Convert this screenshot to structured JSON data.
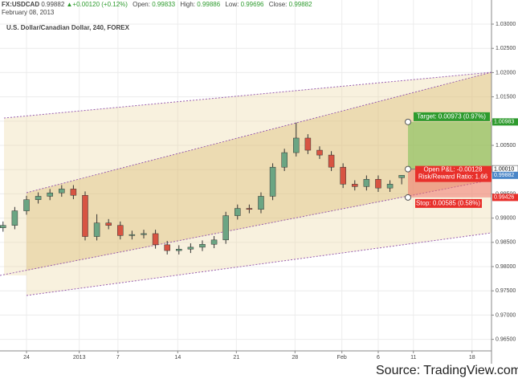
{
  "header": {
    "symbol": "FX:USDCAD",
    "last": "0.99882",
    "change": "+0.00120 (+0.12%)",
    "open_label": "Open:",
    "open": "0.99833",
    "high_label": "High:",
    "high": "0.99886",
    "low_label": "Low:",
    "low": "0.99696",
    "close_label": "Close:",
    "close": "0.99882",
    "date": "February 08, 2013"
  },
  "chart_data": {
    "type": "candlestick",
    "title": "U.S. Dollar/Canadian Dollar, 240, FOREX",
    "x": [
      -2,
      -1,
      0,
      1,
      2,
      3,
      4,
      5,
      6,
      7,
      8,
      9,
      10,
      11,
      12,
      13,
      14,
      15,
      16,
      17,
      18,
      19,
      20,
      21,
      22,
      23,
      24,
      25,
      26,
      27,
      28,
      29,
      30,
      31,
      32
    ],
    "open": [
      0.988,
      0.9885,
      0.9915,
      0.9938,
      0.9945,
      0.9952,
      0.996,
      0.9947,
      0.9862,
      0.989,
      0.9885,
      0.9864,
      0.9866,
      0.9868,
      0.9845,
      0.9833,
      0.9836,
      0.984,
      0.9846,
      0.9855,
      0.9905,
      0.992,
      0.9918,
      0.9945,
      1.0005,
      1.0035,
      1.0065,
      1.004,
      1.003,
      1.0005,
      0.997,
      0.9965,
      0.998,
      0.9962,
      0.99833
    ],
    "high": [
      0.9893,
      0.9923,
      0.9946,
      0.9953,
      0.996,
      0.9968,
      0.9968,
      0.9955,
      0.9908,
      0.9898,
      0.9893,
      0.9874,
      0.9876,
      0.9876,
      0.9853,
      0.9844,
      0.9848,
      0.9854,
      0.9863,
      0.9913,
      0.9928,
      0.9928,
      0.9953,
      1.0013,
      1.0043,
      1.0097,
      1.0073,
      1.0048,
      1.0038,
      1.0013,
      0.9978,
      0.9988,
      0.9988,
      0.9978,
      0.99886
    ],
    "low": [
      0.9872,
      0.9877,
      0.9907,
      0.993,
      0.9937,
      0.9944,
      0.9939,
      0.9854,
      0.9854,
      0.9877,
      0.9856,
      0.9856,
      0.9858,
      0.9837,
      0.9825,
      0.9825,
      0.9828,
      0.9832,
      0.9838,
      0.9847,
      0.9897,
      0.991,
      0.991,
      0.9937,
      0.9997,
      1.0027,
      1.0032,
      1.0022,
      0.9997,
      0.9962,
      0.9957,
      0.9957,
      0.9954,
      0.9954,
      0.99696
    ],
    "close": [
      0.9885,
      0.9915,
      0.9938,
      0.9945,
      0.9952,
      0.996,
      0.9947,
      0.9862,
      0.989,
      0.9885,
      0.9864,
      0.9866,
      0.9868,
      0.9845,
      0.9833,
      0.9836,
      0.984,
      0.9846,
      0.9855,
      0.9905,
      0.992,
      0.9918,
      0.9945,
      1.0005,
      1.0035,
      1.0065,
      1.004,
      1.003,
      1.0005,
      0.997,
      0.9965,
      0.998,
      0.9962,
      0.997,
      0.99882
    ],
    "up_color": "#6ba583",
    "down_color": "#d75442",
    "xlim": [
      -2.26,
      39.66
    ],
    "xticks": [
      {
        "value": 0,
        "label": "24"
      },
      {
        "value": 4.5,
        "label": "2013"
      },
      {
        "value": 7.8,
        "label": "7"
      },
      {
        "value": 12.9,
        "label": "14"
      },
      {
        "value": 17.9,
        "label": "21"
      },
      {
        "value": 22.9,
        "label": "28"
      },
      {
        "value": 26.9,
        "label": "Feb"
      },
      {
        "value": 30,
        "label": "6"
      },
      {
        "value": 33,
        "label": "11"
      },
      {
        "value": 38,
        "label": "18"
      }
    ],
    "ylim": [
      0.96262,
      1.03166
    ],
    "yticks": [
      {
        "value": 1.03,
        "label": "1.03000"
      },
      {
        "value": 1.025,
        "label": "1.02500"
      },
      {
        "value": 1.02,
        "label": "1.02000"
      },
      {
        "value": 1.015,
        "label": "1.01500"
      },
      {
        "value": 1.01,
        "label": "1.01000"
      },
      {
        "value": 1.005,
        "label": "1.00500"
      },
      {
        "value": 1.0,
        "label": "1.00000"
      },
      {
        "value": 0.995,
        "label": "0.99500"
      },
      {
        "value": 0.99,
        "label": "0.99000"
      },
      {
        "value": 0.985,
        "label": "0.98500"
      },
      {
        "value": 0.98,
        "label": "0.98000"
      },
      {
        "value": 0.975,
        "label": "0.97500"
      },
      {
        "value": 0.97,
        "label": "0.97000"
      },
      {
        "value": 0.965,
        "label": "0.96500"
      }
    ],
    "grid": true,
    "position": {
      "target_label": "Target: 0.00973 (0.97%)",
      "pnl_label": "Open P&L: -0.00128",
      "rr_label": "Risk/Reward Ratio: 1.66",
      "stop_label": "Stop: 0.00585 (0.58%)"
    },
    "price_tags": [
      {
        "value": 1.00983,
        "label": "1.00983",
        "color": "#2e9b2e"
      },
      {
        "value": 1.0001,
        "label": "1.00010",
        "color": "#ffffff"
      },
      {
        "value": 0.99882,
        "label": "0.99882",
        "color": "#4a86c8"
      },
      {
        "value": 0.99426,
        "label": "0.99426",
        "color": "#e8302b"
      }
    ]
  },
  "source": "Source: TradingView.com"
}
